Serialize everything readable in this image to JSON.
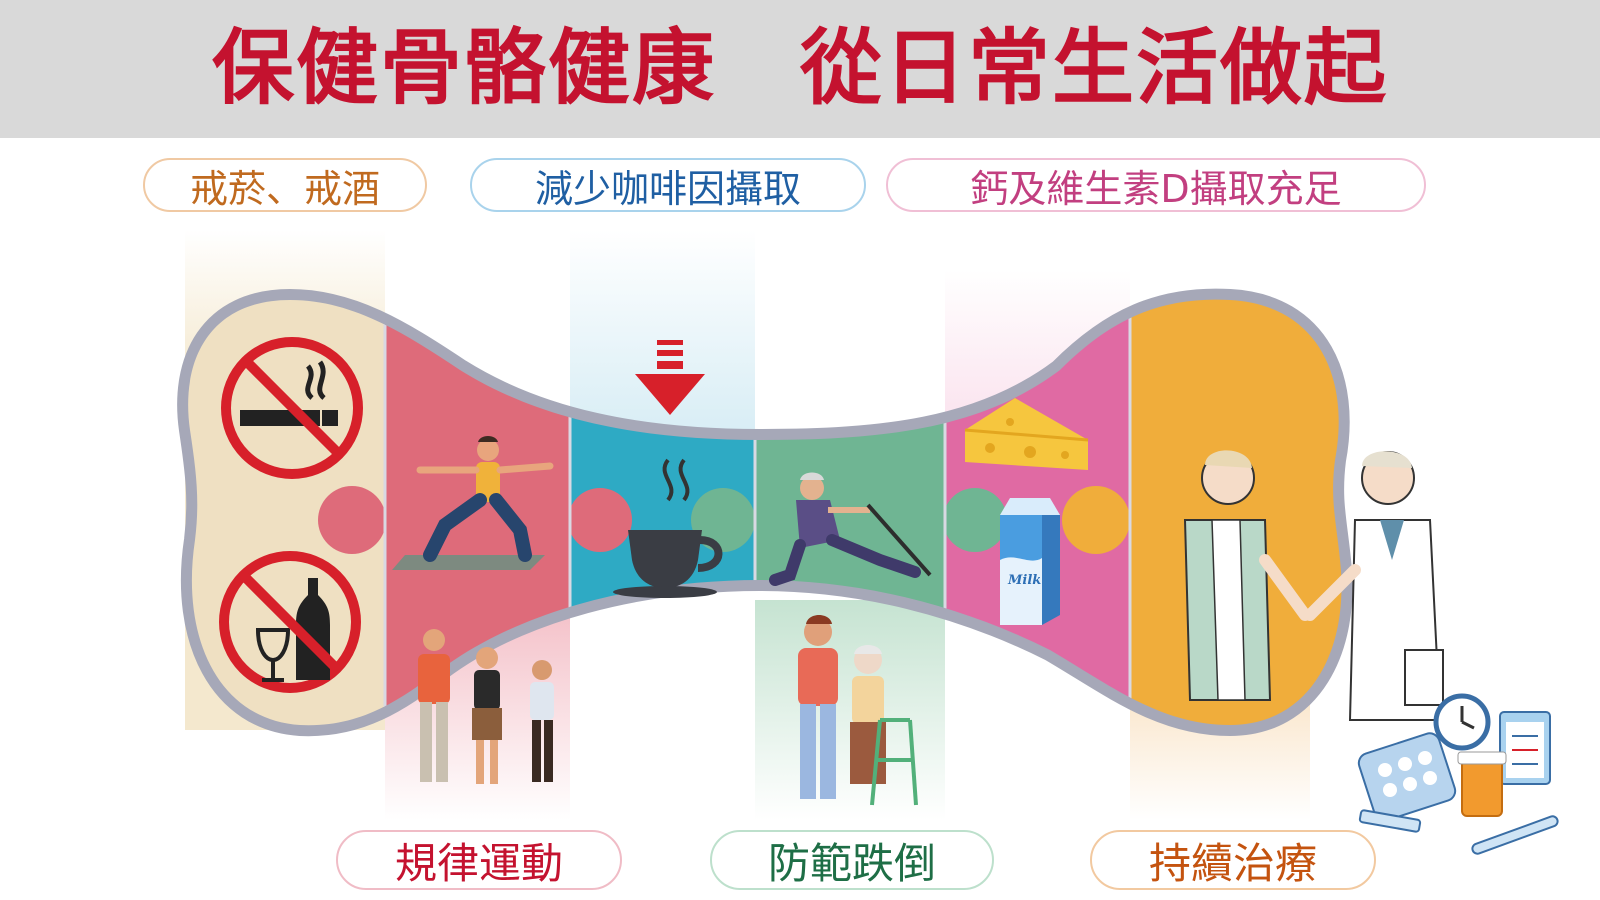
{
  "header": {
    "title": "保健骨骼健康　從日常生活做起"
  },
  "tips": {
    "smoking_alcohol": "戒菸、戒酒",
    "coffee": "減少咖啡因攝取",
    "calcium": "鈣及維生素D攝取充足",
    "exercise": "規律運動",
    "fall_prevention": "防範跌倒",
    "treatment": "持續治療"
  },
  "milk_carton": {
    "label": "Milk"
  },
  "colors": {
    "title_red": "#c4122f",
    "header_gray": "#d9d9d9",
    "segment_beige": "#efe0c2",
    "segment_red": "#de6b7a",
    "segment_blue": "#2eaac4",
    "segment_green": "#6fb593",
    "segment_pink": "#e06aa3",
    "segment_orange": "#f0ad3b"
  },
  "icons": [
    "no-smoking-icon",
    "no-alcohol-icon",
    "down-arrow-icon",
    "coffee-cup-icon",
    "cheese-icon",
    "milk-carton-icon",
    "clock-icon",
    "pills-icon",
    "clipboard-icon",
    "thermometer-icon",
    "syringe-icon"
  ]
}
